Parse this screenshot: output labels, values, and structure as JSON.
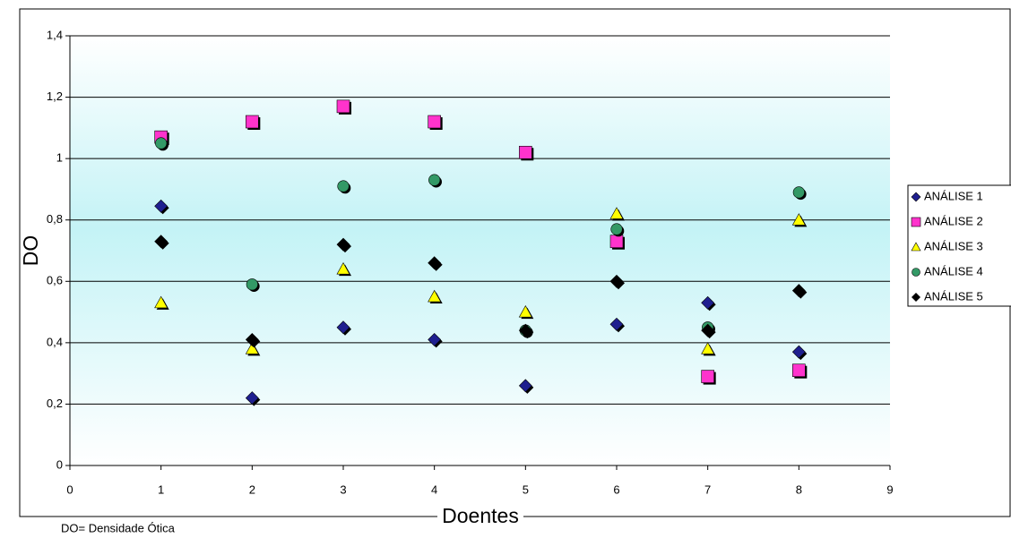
{
  "chart_data": {
    "type": "scatter",
    "x_label": "Doentes",
    "y_label": "DO",
    "footnote": "DO= Densidade Ótica",
    "x": [
      1,
      2,
      3,
      4,
      5,
      6,
      7,
      8
    ],
    "xlim": [
      0,
      9
    ],
    "xticks": [
      0,
      1,
      2,
      3,
      4,
      5,
      6,
      7,
      8,
      9
    ],
    "ylim": [
      0,
      1.4
    ],
    "yticks": [
      0,
      {
        "value": 0.2,
        "label": "0,2"
      },
      {
        "value": 0.4,
        "label": "0,4"
      },
      {
        "value": 0.6,
        "label": "0,6"
      },
      {
        "value": 0.8,
        "label": "0,8"
      },
      1,
      {
        "value": 1.2,
        "label": "1,2"
      },
      {
        "value": 1.4,
        "label": "1,4"
      }
    ],
    "grid": true,
    "legend": "right",
    "series": [
      {
        "name": "ANÁLISE 1",
        "color": "#1f1f8f",
        "marker": "diamond",
        "values": [
          0.845,
          0.22,
          0.45,
          0.41,
          0.26,
          0.46,
          0.53,
          0.37
        ]
      },
      {
        "name": "ANÁLISE 2",
        "color": "#ff33cc",
        "marker": "square",
        "values": [
          1.07,
          1.12,
          1.17,
          1.12,
          1.02,
          0.73,
          0.29,
          0.31
        ]
      },
      {
        "name": "ANÁLISE 3",
        "color": "#ffff00",
        "marker": "triangle",
        "values": [
          0.53,
          0.38,
          0.64,
          0.55,
          0.5,
          0.82,
          0.38,
          0.8
        ]
      },
      {
        "name": "ANÁLISE 4",
        "color": "#339966",
        "marker": "circle",
        "values": [
          1.05,
          0.59,
          0.91,
          0.93,
          0.44,
          0.77,
          0.45,
          0.89
        ]
      },
      {
        "name": "ANÁLISE 5",
        "color": "#000000",
        "marker": "diamond",
        "values": [
          0.73,
          0.41,
          0.72,
          0.66,
          0.44,
          0.6,
          0.44,
          0.57
        ]
      }
    ]
  }
}
